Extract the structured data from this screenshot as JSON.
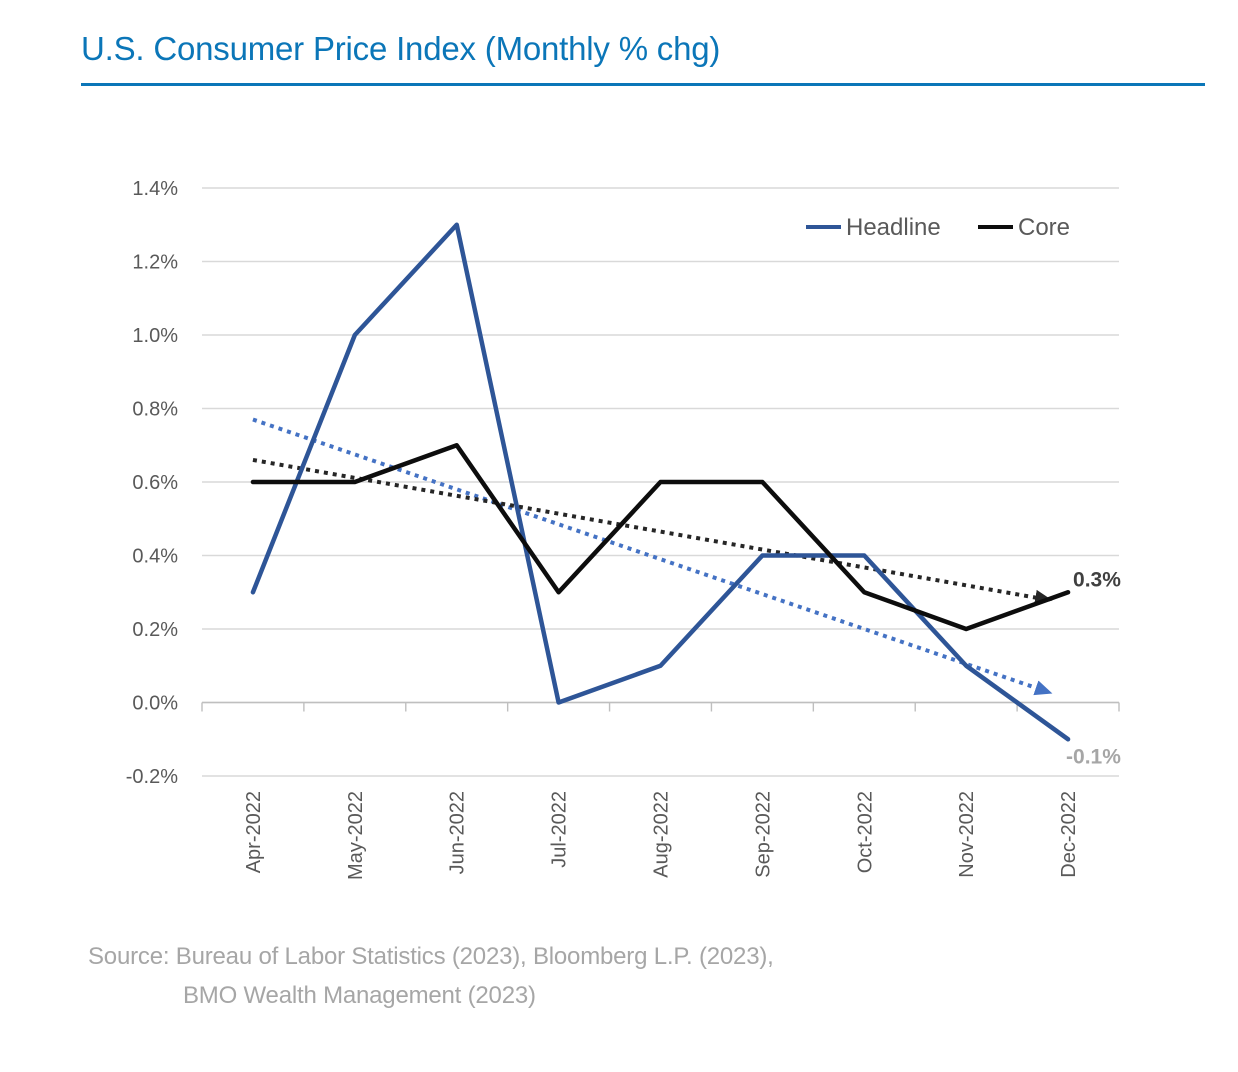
{
  "header": {
    "title": "U.S. Consumer Price Index (Monthly % chg)"
  },
  "chart_data": {
    "type": "line",
    "title": "U.S. Consumer Price Index (Monthly % chg)",
    "categories": [
      "Apr-2022",
      "May-2022",
      "Jun-2022",
      "Jul-2022",
      "Aug-2022",
      "Sep-2022",
      "Oct-2022",
      "Nov-2022",
      "Dec-2022"
    ],
    "series": [
      {
        "name": "Headline",
        "color": "#2e5597",
        "values": [
          0.3,
          1.0,
          1.3,
          0.0,
          0.1,
          0.4,
          0.4,
          0.1,
          -0.1
        ],
        "end_label": "-0.1%",
        "end_label_color": "#a6a6a6"
      },
      {
        "name": "Core",
        "color": "#0d0d0d",
        "values": [
          0.6,
          0.6,
          0.7,
          0.3,
          0.6,
          0.6,
          0.3,
          0.2,
          0.3
        ],
        "end_label": "0.3%",
        "end_label_color": "#404040"
      }
    ],
    "trendlines": [
      {
        "for": "Headline",
        "style": "dotted-arrow",
        "color": "#4472c4",
        "start_value": 0.77,
        "end_value": 0.01
      },
      {
        "for": "Core",
        "style": "dotted-arrow",
        "color": "#262626",
        "start_value": 0.66,
        "end_value": 0.27
      }
    ],
    "y_axis": {
      "min": -0.2,
      "max": 1.4,
      "step": 0.2,
      "tick_labels": [
        "1.4%",
        "1.2%",
        "1.0%",
        "0.8%",
        "0.6%",
        "0.4%",
        "0.2%",
        "0.0%",
        "-0.2%"
      ]
    },
    "x_axis": {
      "label_rotation": -90
    },
    "legend": {
      "position": "top-right",
      "entries": [
        "Headline",
        "Core"
      ]
    },
    "grid": true,
    "ylim": [
      -0.2,
      1.4
    ]
  },
  "source": {
    "line1": "Source: Bureau of Labor Statistics (2023), Bloomberg L.P. (2023),",
    "line2": "BMO Wealth Management (2023)"
  },
  "colors": {
    "title_blue": "#0b76b8",
    "gridline": "#d9d9d9",
    "axis_line": "#bfbfbf",
    "tick_text": "#595959",
    "legend_text": "#595959"
  }
}
